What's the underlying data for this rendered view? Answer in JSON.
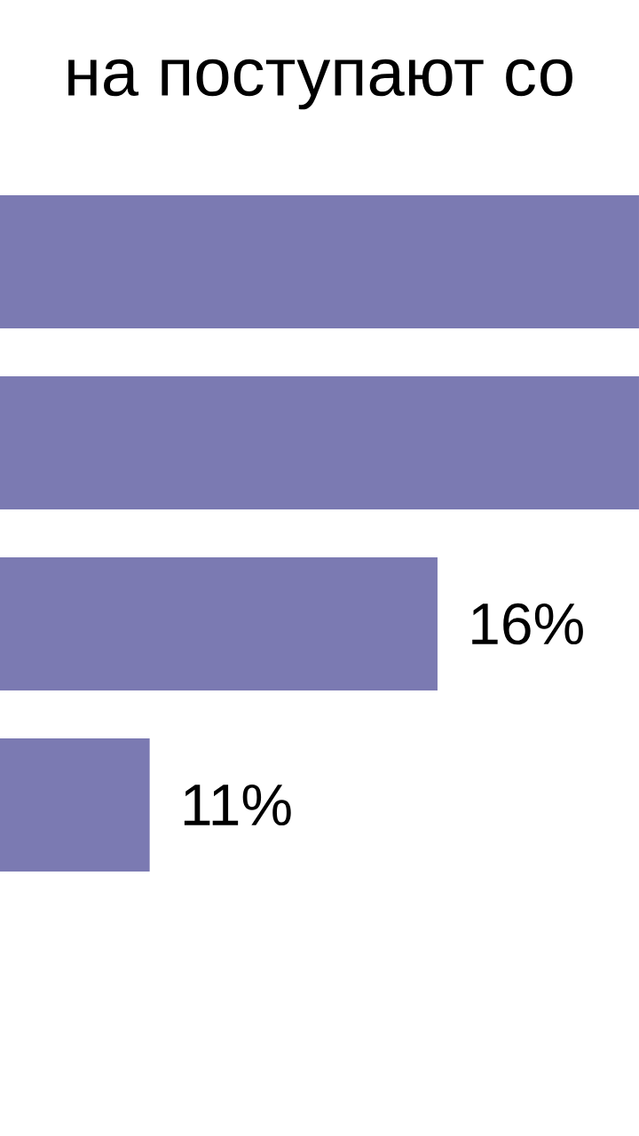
{
  "chart_data": {
    "type": "bar",
    "orientation": "horizontal",
    "title": "на поступают со",
    "categories": [
      null,
      null,
      null,
      null
    ],
    "values": [
      19.5,
      19.5,
      16,
      11
    ],
    "value_labels": [
      null,
      null,
      "16%",
      "11%"
    ],
    "color": "#7b7ab2",
    "xlim": [
      8.4,
      19.5
    ]
  }
}
